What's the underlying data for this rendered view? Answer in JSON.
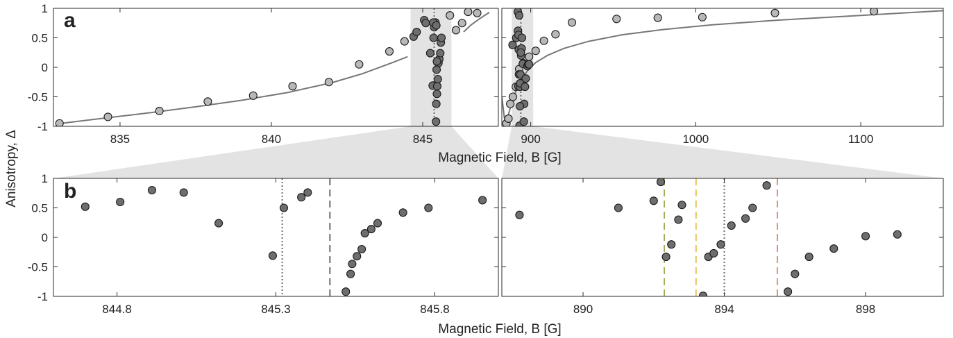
{
  "figure": {
    "ylabel": "Anisotropy, Δ",
    "xlabel_top": "Magnetic Field, B [G]",
    "xlabel_bottom": "Magnetic Field, B [G]"
  },
  "colors": {
    "light_point": "#b8b8b8",
    "dark_point": "#6e6e6e",
    "curve": "#777777",
    "shade": "#e3e3e3",
    "dotted_line": "#777777",
    "dash_black": "#333333",
    "dash_olive": "#8a9a2a",
    "dash_gold": "#e0b020",
    "dash_orange": "#d66a3a"
  },
  "chart_data": [
    {
      "panel": "a-left",
      "label": "a",
      "type": "scatter",
      "xlim": [
        832.8,
        847.5
      ],
      "ylim": [
        -1,
        1
      ],
      "xticks": [
        835,
        840,
        845
      ],
      "xtick_labels": [
        "835",
        "840",
        "845"
      ],
      "yticks": [
        1,
        0.5,
        0,
        -0.5,
        -1
      ],
      "ytick_labels": [
        "1",
        "0.5",
        "0",
        "-0.5",
        "-1"
      ],
      "shaded_region": [
        844.6,
        845.95
      ],
      "dotted_vline": 845.38,
      "curves": [
        {
          "x": [
            832.9,
            834.5,
            836.0,
            837.5,
            839.0,
            840.5,
            842.0,
            843.0,
            844.0,
            844.5
          ],
          "y": [
            -0.96,
            -0.86,
            -0.77,
            -0.67,
            -0.56,
            -0.43,
            -0.26,
            -0.11,
            0.08,
            0.18
          ]
        },
        {
          "x": [
            846.35,
            846.6,
            846.9,
            847.2
          ],
          "y": [
            0.6,
            0.72,
            0.83,
            0.93
          ]
        }
      ],
      "series": [
        {
          "style": "light",
          "x": [
            833.0,
            834.6,
            836.3,
            837.9,
            839.4,
            840.7,
            841.9,
            842.9,
            843.9,
            844.4,
            845.9,
            846.5,
            846.8,
            846.3,
            846.1
          ],
          "y": [
            -0.95,
            -0.84,
            -0.74,
            -0.58,
            -0.48,
            -0.32,
            -0.25,
            0.05,
            0.27,
            0.44,
            0.88,
            0.94,
            0.92,
            0.75,
            0.63
          ]
        },
        {
          "style": "dark",
          "x": [
            844.7,
            844.8,
            845.05,
            845.1,
            845.25,
            845.33,
            845.36,
            845.38,
            845.42,
            845.44,
            845.45,
            845.47,
            845.48,
            845.5,
            845.52,
            845.55,
            845.58,
            845.6,
            845.62,
            845.35,
            845.45,
            845.46,
            845.47
          ],
          "y": [
            0.52,
            0.6,
            0.8,
            0.75,
            0.24,
            -0.31,
            0.5,
            0.68,
            0.76,
            -0.92,
            -0.62,
            -0.45,
            -0.32,
            -0.2,
            0.07,
            0.14,
            0.24,
            0.42,
            0.5,
            0.76,
            0.71,
            -0.04,
            0.1
          ]
        }
      ]
    },
    {
      "panel": "a-right",
      "type": "scatter",
      "xlim": [
        882.5,
        1150
      ],
      "ylim": [
        -1,
        1
      ],
      "xticks": [
        900,
        1000,
        1100
      ],
      "xtick_labels": [
        "900",
        "1000",
        "1100"
      ],
      "yticks": [
        1,
        0.5,
        0,
        -0.5,
        -1
      ],
      "ytick_labels": [],
      "shaded_region": [
        888.5,
        901.5
      ],
      "dotted_vline": 894.0,
      "curves": [
        {
          "x": [
            885.0,
            886.5,
            888.5,
            891.0,
            894.0,
            898.0,
            903.0,
            910.0,
            920.0,
            935.0,
            955.0,
            980.0,
            1010.0,
            1050.0,
            1100.0,
            1150.0
          ],
          "y": [
            -1.0,
            -0.8,
            -0.6,
            -0.4,
            -0.22,
            -0.06,
            0.08,
            0.2,
            0.32,
            0.44,
            0.55,
            0.64,
            0.72,
            0.8,
            0.88,
            0.96
          ]
        },
        {
          "x": [
            882.5,
            884.0,
            885.0
          ],
          "y": [
            -0.5,
            -0.85,
            -1.0
          ]
        }
      ],
      "series": [
        {
          "style": "light",
          "x": [
            885.3,
            886.5,
            887.6,
            889.2,
            891.0,
            893.0,
            895.5,
            899.0,
            903.0,
            908.0,
            915.0,
            925.0,
            952.0,
            977.0,
            1004.0,
            1048.0,
            1108.0
          ],
          "y": [
            -0.95,
            -0.87,
            -0.62,
            -0.5,
            -0.33,
            -0.03,
            0.07,
            0.18,
            0.28,
            0.45,
            0.56,
            0.76,
            0.82,
            0.84,
            0.85,
            0.92,
            0.95
          ]
        },
        {
          "style": "dark",
          "x": [
            889.0,
            891.2,
            892.2,
            892.3,
            892.5,
            892.6,
            892.8,
            892.9,
            893.0,
            893.2,
            893.5,
            893.6,
            893.8,
            894.2,
            894.5,
            894.7,
            895.2,
            895.8,
            896.0,
            896.5,
            897.0,
            898.0,
            898.5,
            899.0,
            893.5,
            894.0
          ],
          "y": [
            0.38,
            0.5,
            0.94,
            0.62,
            -0.32,
            0.55,
            0.3,
            -0.12,
            0.88,
            -0.99,
            -0.33,
            -0.27,
            -0.12,
            0.2,
            0.32,
            0.5,
            0.06,
            -0.92,
            -0.62,
            -0.33,
            -0.19,
            0.02,
            0.05,
            0.05,
            -0.66,
            0.25
          ]
        }
      ]
    },
    {
      "panel": "b-left",
      "label": "b",
      "type": "scatter",
      "xlim": [
        844.6,
        846.0
      ],
      "ylim": [
        -1,
        1
      ],
      "xticks": [
        844.8,
        845.3,
        845.8
      ],
      "xtick_labels": [
        "844.8",
        "845.3",
        "845.8"
      ],
      "yticks": [
        1,
        0.5,
        0,
        -0.5,
        -1
      ],
      "ytick_labels": [
        "1",
        "0.5",
        "0",
        "-0.5",
        "-1"
      ],
      "dotted_vline": 845.32,
      "dashed_vlines": [
        {
          "x": 845.47,
          "color": "dash_black"
        }
      ],
      "series": [
        {
          "style": "dark",
          "x": [
            844.7,
            844.81,
            844.91,
            845.01,
            845.12,
            845.29,
            845.325,
            845.38,
            845.4,
            845.52,
            845.535,
            845.54,
            845.555,
            845.57,
            845.58,
            845.6,
            845.62,
            845.7,
            845.78,
            845.95
          ],
          "y": [
            0.52,
            0.6,
            0.8,
            0.76,
            0.24,
            -0.31,
            0.5,
            0.68,
            0.76,
            -0.92,
            -0.62,
            -0.45,
            -0.32,
            -0.2,
            0.07,
            0.14,
            0.24,
            0.42,
            0.5,
            0.63
          ]
        }
      ]
    },
    {
      "panel": "b-right",
      "type": "scatter",
      "xlim": [
        887.7,
        900.2
      ],
      "ylim": [
        -1,
        1
      ],
      "xticks": [
        890,
        894,
        898
      ],
      "xtick_labels": [
        "890",
        "894",
        "898"
      ],
      "yticks": [
        1,
        0.5,
        0,
        -0.5,
        -1
      ],
      "ytick_labels": [],
      "dotted_vline": 894.0,
      "dashed_vlines": [
        {
          "x": 892.3,
          "color": "dash_olive"
        },
        {
          "x": 893.2,
          "color": "dash_gold"
        },
        {
          "x": 895.5,
          "color": "dash_orange"
        }
      ],
      "series": [
        {
          "style": "dark",
          "x": [
            888.2,
            891.0,
            892.0,
            892.2,
            892.35,
            892.5,
            892.7,
            892.8,
            893.4,
            893.55,
            893.7,
            893.9,
            894.2,
            894.6,
            894.8,
            895.2,
            895.8,
            896.0,
            896.4,
            897.1,
            898.0,
            898.9
          ],
          "y": [
            0.38,
            0.5,
            0.62,
            0.94,
            -0.33,
            -0.12,
            0.3,
            0.55,
            -0.99,
            -0.33,
            -0.27,
            -0.12,
            0.2,
            0.32,
            0.5,
            0.88,
            -0.92,
            -0.62,
            -0.33,
            -0.19,
            0.02,
            0.05
          ]
        }
      ]
    }
  ]
}
